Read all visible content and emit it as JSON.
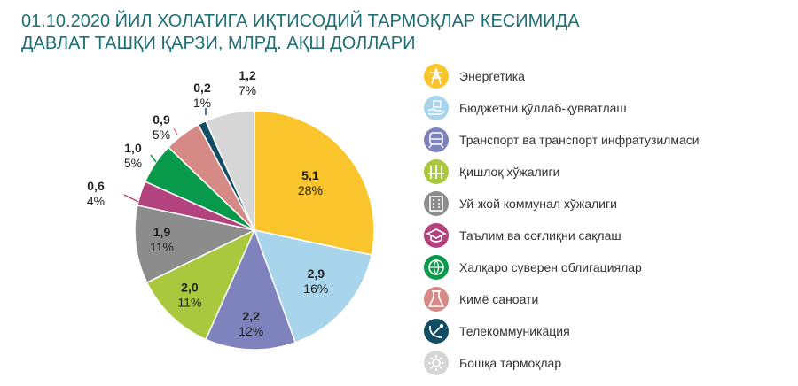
{
  "title": {
    "line1": "01.10.2020 ЙИЛ ХОЛАТИГА ИҚТИСОДИЙ ТАРМОҚЛАР КЕСИМИДА",
    "line2": "ДАВЛАТ ТАШҚИ ҚАРЗИ, МЛРД. АҚШ ДОЛЛАРИ"
  },
  "chart_data": {
    "type": "pie",
    "title": "01.10.2020 ЙИЛ ХОЛАТИГА ИҚТИСОДИЙ ТАРМОҚЛАР КЕСИМИДА ДАВЛАТ ТАШҚИ ҚАРЗИ, МЛРД. АҚШ ДОЛЛАРИ",
    "unit": "млрд. АҚШ доллари",
    "legend_position": "right",
    "slices": [
      {
        "name": "Энергетика",
        "value": 5.1,
        "value_label": "5,1",
        "percent_label": "28%",
        "color": "#f9c42c",
        "icon": "power-tower-icon"
      },
      {
        "name": "Бюджетни қўллаб-қувватлаш",
        "value": 2.9,
        "value_label": "2,9",
        "percent_label": "16%",
        "color": "#a8d5ec",
        "icon": "hand-money-icon"
      },
      {
        "name": "Транспорт ва транспорт инфратузилмаси",
        "value": 2.2,
        "value_label": "2,2",
        "percent_label": "12%",
        "color": "#7e82bd",
        "icon": "train-icon"
      },
      {
        "name": "Қишлоқ хўжалиги",
        "value": 2.0,
        "value_label": "2,0",
        "percent_label": "11%",
        "color": "#a9c83d",
        "icon": "wheat-icon"
      },
      {
        "name": "Уй-жой коммунал хўжалиги",
        "value": 1.9,
        "value_label": "1,9",
        "percent_label": "11%",
        "color": "#8c8c8c",
        "icon": "building-icon"
      },
      {
        "name": "Таълим ва соғлиқни сақлаш",
        "value": 0.6,
        "value_label": "0,6",
        "percent_label": "4%",
        "color": "#b3437f",
        "icon": "graduation-cap-icon"
      },
      {
        "name": "Халқаро суверен облигациялар",
        "value": 1.0,
        "value_label": "1,0",
        "percent_label": "5%",
        "color": "#089a4a",
        "icon": "globe-bond-icon"
      },
      {
        "name": "Кимё саноати",
        "value": 0.9,
        "value_label": "0,9",
        "percent_label": "5%",
        "color": "#d68a86",
        "icon": "flask-icon"
      },
      {
        "name": "Телекоммуникация",
        "value": 0.2,
        "value_label": "0,2",
        "percent_label": "1%",
        "color": "#124e63",
        "icon": "satellite-dish-icon"
      },
      {
        "name": "Бошқа тармоқлар",
        "value": 1.2,
        "value_label": "1,2",
        "percent_label": "7%",
        "color": "#d6d6d6",
        "icon": "gear-icon"
      }
    ]
  }
}
